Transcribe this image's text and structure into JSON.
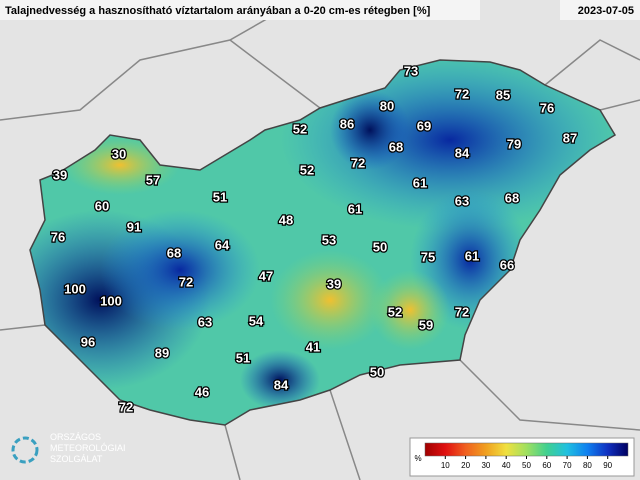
{
  "header": {
    "title": "Talajnedvesség a hasznosítható víztartalom arányában a 0-20 cm-es rétegben [%]",
    "date": "2023-07-05"
  },
  "map_labels": [
    73,
    72,
    85,
    76,
    80,
    69,
    86,
    52,
    68,
    84,
    79,
    87,
    30,
    72,
    52,
    39,
    57,
    61,
    60,
    51,
    48,
    61,
    63,
    68,
    91,
    76,
    53,
    50,
    64,
    68,
    75,
    61,
    66,
    47,
    39,
    72,
    100,
    100,
    63,
    54,
    52,
    59,
    72,
    96,
    41,
    89,
    51,
    84,
    50,
    46,
    72
  ],
  "colorbar": {
    "unit": "%",
    "range": [
      0,
      100
    ],
    "ticks": [
      10,
      20,
      30,
      40,
      50,
      60,
      70,
      80,
      90
    ],
    "colors": [
      "#a00000",
      "#e01010",
      "#f06020",
      "#f0a020",
      "#f0e040",
      "#a0e060",
      "#40d090",
      "#20c0e0",
      "#1080f0",
      "#1030c0",
      "#000060"
    ]
  },
  "logo": {
    "lines": [
      "ORSZÁGOS",
      "METEOROLÓGIAI",
      "SZOLGÁLAT"
    ]
  }
}
